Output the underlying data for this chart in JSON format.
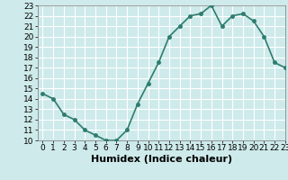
{
  "x": [
    0,
    1,
    2,
    3,
    4,
    5,
    6,
    7,
    8,
    9,
    10,
    11,
    12,
    13,
    14,
    15,
    16,
    17,
    18,
    19,
    20,
    21,
    22,
    23
  ],
  "y": [
    14.5,
    14.0,
    12.5,
    12.0,
    11.0,
    10.5,
    10.0,
    10.0,
    11.0,
    13.5,
    15.5,
    17.5,
    20.0,
    21.0,
    22.0,
    22.2,
    23.0,
    21.0,
    22.0,
    22.2,
    21.5,
    20.0,
    17.5,
    17.0
  ],
  "line_color": "#2e7d6e",
  "marker_color": "#2e7d6e",
  "bg_color": "#ceeaea",
  "grid_color": "#ffffff",
  "xlabel": "Humidex (Indice chaleur)",
  "ylim": [
    10,
    23
  ],
  "xlim": [
    -0.5,
    23
  ],
  "yticks": [
    10,
    11,
    12,
    13,
    14,
    15,
    16,
    17,
    18,
    19,
    20,
    21,
    22,
    23
  ],
  "xticks": [
    0,
    1,
    2,
    3,
    4,
    5,
    6,
    7,
    8,
    9,
    10,
    11,
    12,
    13,
    14,
    15,
    16,
    17,
    18,
    19,
    20,
    21,
    22,
    23
  ],
  "xlabel_fontsize": 8,
  "tick_fontsize": 6.5,
  "linewidth": 1.2,
  "markersize": 2.5
}
